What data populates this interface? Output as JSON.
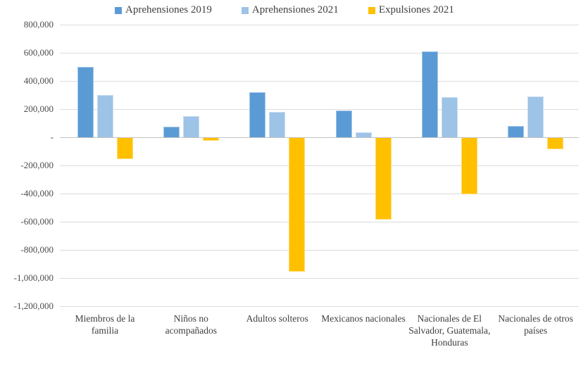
{
  "chart_data": {
    "type": "bar",
    "title": "",
    "xlabel": "",
    "ylabel": "",
    "categories": [
      "Miembros de la familia",
      "Niños no acompañados",
      "Adultos solteros",
      "Mexicanos nacionales",
      "Nacionales de El Salvador, Guatemala, Honduras",
      "Nacionales de otros países"
    ],
    "series": [
      {
        "name": "Aprehensiones 2019",
        "color": "#5B9BD5",
        "values": [
          500000,
          75000,
          320000,
          190000,
          610000,
          80000
        ]
      },
      {
        "name": "Aprehensiones 2021",
        "color": "#9DC3E6",
        "values": [
          300000,
          150000,
          180000,
          35000,
          285000,
          290000
        ]
      },
      {
        "name": "Expulsiones 2021",
        "color": "#FFC000",
        "values": [
          -150000,
          -20000,
          -950000,
          -580000,
          -400000,
          -80000
        ]
      }
    ],
    "ylim": [
      -1200000,
      800000
    ],
    "ytick_step": 200000,
    "ytick_labels": [
      "800,000",
      "600,000",
      "400,000",
      "200,000",
      "-",
      "-200,000",
      "-400,000",
      "-600,000",
      "-800,000",
      "-1,000,000",
      "-1,200,000"
    ],
    "grid": true,
    "legend_position": "top"
  },
  "colors": {
    "gridline": "#dcdcdc",
    "zero_line": "#c3c3c3",
    "axis_text": "#4d4d4d"
  }
}
